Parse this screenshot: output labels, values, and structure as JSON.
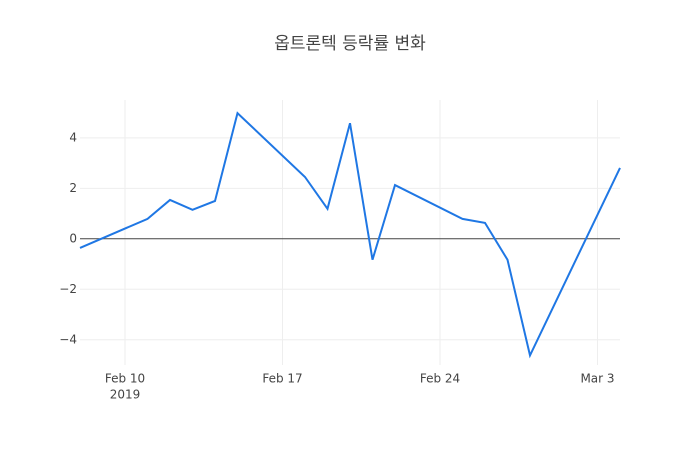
{
  "chart_data": {
    "type": "line",
    "title": "옵트론텍 등락률 변화",
    "x": [
      "2019-02-08",
      "2019-02-11",
      "2019-02-12",
      "2019-02-13",
      "2019-02-14",
      "2019-02-15",
      "2019-02-18",
      "2019-02-19",
      "2019-02-20",
      "2019-02-21",
      "2019-02-22",
      "2019-02-25",
      "2019-02-26",
      "2019-02-27",
      "2019-02-28",
      "2019-03-04"
    ],
    "series": [
      {
        "color": "#1f77e4",
        "values": [
          -0.36,
          0.79,
          1.54,
          1.15,
          1.5,
          4.98,
          2.45,
          1.19,
          4.58,
          -0.83,
          2.13,
          0.79,
          0.63,
          -0.83,
          -4.62,
          2.81
        ]
      }
    ],
    "xlim": [
      "2019-02-08",
      "2019-03-04"
    ],
    "xticks": [
      {
        "value": "2019-02-10",
        "label": "Feb 10"
      },
      {
        "value": "2019-02-17",
        "label": "Feb 17"
      },
      {
        "value": "2019-02-24",
        "label": "Feb 24"
      },
      {
        "value": "2019-03-03",
        "label": "Mar 3"
      }
    ],
    "xtick_year": "2019",
    "ylim": [
      -5,
      5.5
    ],
    "yticks": [
      {
        "value": -4,
        "label": "−4"
      },
      {
        "value": -2,
        "label": "−2"
      },
      0,
      2,
      4
    ],
    "grid": true,
    "zeroline": true
  }
}
